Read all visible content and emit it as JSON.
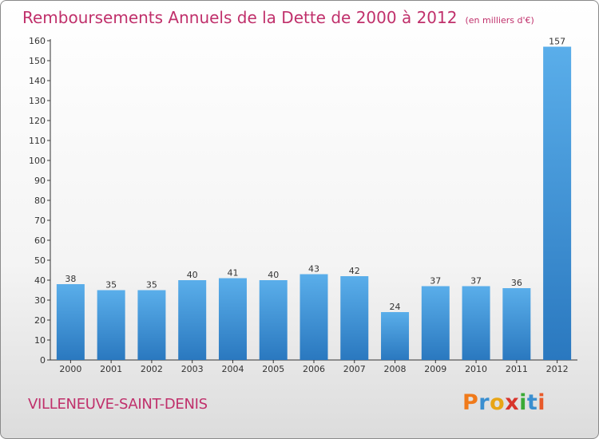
{
  "title": "Remboursements Annuels de la Dette de 2000 à 2012",
  "unit": "(en milliers d'€)",
  "commune": "VILLENEUVE-SAINT-DENIS",
  "logo": {
    "text": "Proxiti",
    "letter_colors": [
      "#f07a1a",
      "#3a8fd0",
      "#e8a515",
      "#d8342b",
      "#3aaa35",
      "#3a8fd0",
      "#e85a2a"
    ]
  },
  "chart_data": {
    "type": "bar",
    "title": "Remboursements Annuels de la Dette de 2000 à 2012",
    "xlabel": "",
    "ylabel": "",
    "categories": [
      "2000",
      "2001",
      "2002",
      "2003",
      "2004",
      "2005",
      "2006",
      "2007",
      "2008",
      "2009",
      "2010",
      "2011",
      "2012"
    ],
    "values": [
      38,
      35,
      35,
      40,
      41,
      40,
      43,
      42,
      24,
      37,
      37,
      36,
      157
    ],
    "data_labels": [
      "38",
      "35",
      "35",
      "40",
      "41",
      "40",
      "43",
      "42",
      "24",
      "37",
      "37",
      "36",
      "157"
    ],
    "ylim": [
      0,
      160
    ],
    "y_ticks": [
      0,
      10,
      20,
      30,
      40,
      50,
      60,
      70,
      80,
      90,
      100,
      110,
      120,
      130,
      140,
      150,
      160
    ],
    "grid": false,
    "bar_color": "#3a8fd8"
  }
}
